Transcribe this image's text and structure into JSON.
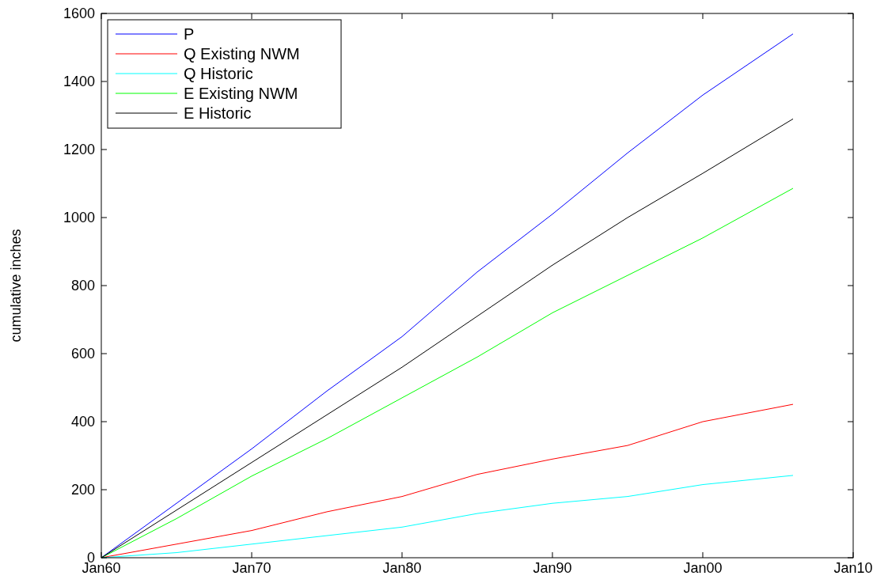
{
  "chart_data": {
    "type": "line",
    "ylabel": "cumulative inches",
    "x": [
      "1960-01",
      "1965-01",
      "1970-01",
      "1975-01",
      "1980-01",
      "1985-01",
      "1990-01",
      "1995-01",
      "2000-01",
      "2006-01"
    ],
    "series": [
      {
        "name": "P",
        "color": "#0000ff",
        "values": [
          0,
          160,
          320,
          490,
          650,
          840,
          1010,
          1190,
          1360,
          1540
        ]
      },
      {
        "name": "Q Existing NWM",
        "color": "#ff0000",
        "values": [
          0,
          40,
          80,
          135,
          180,
          245,
          290,
          330,
          400,
          451
        ]
      },
      {
        "name": "Q Historic",
        "color": "#00ffff",
        "values": [
          0,
          15,
          40,
          65,
          90,
          130,
          160,
          180,
          215,
          242
        ]
      },
      {
        "name": "E Existing NWM",
        "color": "#00ff00",
        "values": [
          0,
          115,
          240,
          350,
          470,
          590,
          720,
          830,
          940,
          1086
        ]
      },
      {
        "name": "E Historic",
        "color": "#000000",
        "values": [
          0,
          140,
          280,
          420,
          560,
          710,
          860,
          1000,
          1130,
          1290
        ]
      }
    ],
    "xlim": [
      "1960-01",
      "2010-01"
    ],
    "xticks": [
      {
        "value": "1960-01",
        "label": "Jan60"
      },
      {
        "value": "1970-01",
        "label": "Jan70"
      },
      {
        "value": "1980-01",
        "label": "Jan80"
      },
      {
        "value": "1990-01",
        "label": "Jan90"
      },
      {
        "value": "2000-01",
        "label": "Jan00"
      },
      {
        "value": "2010-01",
        "label": "Jan10"
      }
    ],
    "ylim": [
      0,
      1600
    ],
    "yticks": [
      0,
      200,
      400,
      600,
      800,
      1000,
      1200,
      1400,
      1600
    ],
    "legend": "top left",
    "grid": false,
    "line_style": "solid"
  }
}
